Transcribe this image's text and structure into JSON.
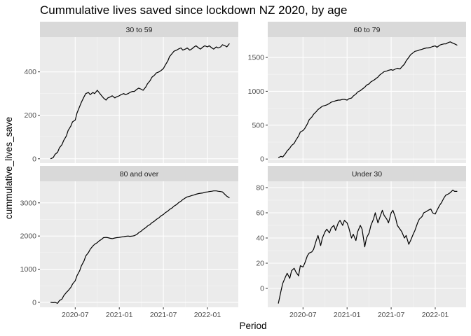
{
  "chart_data": {
    "type": "line",
    "title": "Cummulative lives saved since lockdown NZ 2020, by age",
    "xlabel": "Period",
    "ylabel": "cummulative_lives_save",
    "layout": "facet 2x2, free y scales",
    "grid": true,
    "x_ticks": [
      "2020-07",
      "2021-01",
      "2021-07",
      "2022-01"
    ],
    "x_tick_values": [
      2020.5,
      2021.0,
      2021.5,
      2022.0
    ],
    "xlim": [
      2020.1,
      2022.35
    ],
    "panels": [
      {
        "name": "30 to 59",
        "ylim": [
          -20,
          560
        ],
        "y_ticks": [
          0,
          200,
          400
        ],
        "x": [
          2020.22,
          2020.25,
          2020.27,
          2020.3,
          2020.32,
          2020.35,
          2020.37,
          2020.4,
          2020.42,
          2020.45,
          2020.47,
          2020.5,
          2020.52,
          2020.55,
          2020.57,
          2020.6,
          2020.62,
          2020.65,
          2020.67,
          2020.7,
          2020.72,
          2020.75,
          2020.77,
          2020.8,
          2020.82,
          2020.85,
          2020.87,
          2020.9,
          2020.92,
          2020.95,
          2020.97,
          2021.0,
          2021.02,
          2021.05,
          2021.07,
          2021.1,
          2021.12,
          2021.15,
          2021.17,
          2021.2,
          2021.22,
          2021.25,
          2021.27,
          2021.3,
          2021.32,
          2021.35,
          2021.37,
          2021.4,
          2021.42,
          2021.45,
          2021.47,
          2021.5,
          2021.52,
          2021.55,
          2021.57,
          2021.6,
          2021.62,
          2021.65,
          2021.67,
          2021.7,
          2021.72,
          2021.75,
          2021.77,
          2021.8,
          2021.82,
          2021.85,
          2021.87,
          2021.9,
          2021.92,
          2021.95,
          2021.97,
          2022.0,
          2022.02,
          2022.05,
          2022.07,
          2022.1,
          2022.12,
          2022.15,
          2022.17,
          2022.2,
          2022.22,
          2022.25
        ],
        "y": [
          0,
          5,
          20,
          30,
          50,
          65,
          85,
          105,
          130,
          150,
          170,
          178,
          210,
          240,
          260,
          285,
          300,
          305,
          295,
          305,
          300,
          315,
          305,
          290,
          280,
          270,
          280,
          285,
          290,
          280,
          285,
          290,
          295,
          300,
          295,
          300,
          305,
          310,
          310,
          320,
          325,
          320,
          315,
          330,
          345,
          360,
          375,
          385,
          395,
          400,
          405,
          415,
          430,
          450,
          470,
          485,
          495,
          500,
          505,
          510,
          500,
          505,
          510,
          500,
          505,
          515,
          520,
          510,
          505,
          515,
          520,
          515,
          520,
          510,
          505,
          515,
          510,
          515,
          525,
          520,
          515,
          530
        ]
      },
      {
        "name": "60 to 79",
        "ylim": [
          -60,
          1800
        ],
        "y_ticks": [
          0,
          500,
          1000,
          1500
        ],
        "x": [
          2020.22,
          2020.25,
          2020.27,
          2020.3,
          2020.32,
          2020.35,
          2020.37,
          2020.4,
          2020.42,
          2020.45,
          2020.47,
          2020.5,
          2020.52,
          2020.55,
          2020.57,
          2020.6,
          2020.62,
          2020.65,
          2020.67,
          2020.7,
          2020.72,
          2020.75,
          2020.77,
          2020.8,
          2020.82,
          2020.85,
          2020.87,
          2020.9,
          2020.92,
          2020.95,
          2020.97,
          2021.0,
          2021.02,
          2021.05,
          2021.07,
          2021.1,
          2021.12,
          2021.15,
          2021.17,
          2021.2,
          2021.22,
          2021.25,
          2021.27,
          2021.3,
          2021.32,
          2021.35,
          2021.37,
          2021.4,
          2021.42,
          2021.45,
          2021.47,
          2021.5,
          2021.52,
          2021.55,
          2021.57,
          2021.6,
          2021.62,
          2021.65,
          2021.67,
          2021.7,
          2021.72,
          2021.75,
          2021.77,
          2021.8,
          2021.82,
          2021.85,
          2021.87,
          2021.9,
          2021.92,
          2021.95,
          2021.97,
          2022.0,
          2022.02,
          2022.05,
          2022.07,
          2022.1,
          2022.12,
          2022.15,
          2022.17,
          2022.2,
          2022.22,
          2022.25
        ],
        "y": [
          20,
          40,
          30,
          80,
          120,
          160,
          200,
          230,
          280,
          340,
          400,
          420,
          450,
          520,
          580,
          620,
          660,
          700,
          730,
          760,
          780,
          790,
          800,
          820,
          840,
          850,
          860,
          870,
          870,
          880,
          880,
          870,
          890,
          900,
          930,
          960,
          990,
          1010,
          1030,
          1060,
          1090,
          1110,
          1140,
          1160,
          1180,
          1210,
          1240,
          1270,
          1290,
          1300,
          1310,
          1320,
          1310,
          1330,
          1340,
          1330,
          1360,
          1400,
          1450,
          1500,
          1540,
          1570,
          1590,
          1600,
          1610,
          1620,
          1630,
          1640,
          1640,
          1650,
          1660,
          1670,
          1650,
          1680,
          1690,
          1700,
          1700,
          1720,
          1730,
          1710,
          1700,
          1680
        ]
      },
      {
        "name": "80 and over",
        "ylim": [
          -150,
          3650
        ],
        "y_ticks": [
          0,
          1000,
          2000,
          3000
        ],
        "x": [
          2020.22,
          2020.25,
          2020.27,
          2020.3,
          2020.32,
          2020.35,
          2020.37,
          2020.4,
          2020.42,
          2020.45,
          2020.47,
          2020.5,
          2020.52,
          2020.55,
          2020.57,
          2020.6,
          2020.62,
          2020.65,
          2020.67,
          2020.7,
          2020.72,
          2020.75,
          2020.77,
          2020.8,
          2020.82,
          2020.85,
          2020.87,
          2020.9,
          2020.92,
          2020.95,
          2020.97,
          2021.0,
          2021.02,
          2021.05,
          2021.07,
          2021.1,
          2021.12,
          2021.15,
          2021.17,
          2021.2,
          2021.22,
          2021.25,
          2021.27,
          2021.3,
          2021.32,
          2021.35,
          2021.37,
          2021.4,
          2021.42,
          2021.45,
          2021.47,
          2021.5,
          2021.52,
          2021.55,
          2021.57,
          2021.6,
          2021.62,
          2021.65,
          2021.67,
          2021.7,
          2021.72,
          2021.75,
          2021.77,
          2021.8,
          2021.82,
          2021.85,
          2021.87,
          2021.9,
          2021.92,
          2021.95,
          2021.97,
          2022.0,
          2022.02,
          2022.05,
          2022.07,
          2022.1,
          2022.12,
          2022.15,
          2022.17,
          2022.2,
          2022.22,
          2022.25
        ],
        "y": [
          0,
          -10,
          0,
          -30,
          50,
          100,
          200,
          300,
          350,
          450,
          550,
          650,
          800,
          950,
          1100,
          1250,
          1400,
          1500,
          1600,
          1700,
          1750,
          1800,
          1850,
          1900,
          1950,
          1960,
          1950,
          1930,
          1920,
          1940,
          1950,
          1960,
          1970,
          1980,
          1990,
          2000,
          1990,
          2000,
          2010,
          2050,
          2100,
          2150,
          2200,
          2250,
          2300,
          2350,
          2400,
          2450,
          2500,
          2550,
          2600,
          2650,
          2700,
          2750,
          2800,
          2850,
          2900,
          2950,
          3000,
          3050,
          3100,
          3150,
          3180,
          3200,
          3220,
          3240,
          3260,
          3280,
          3290,
          3300,
          3320,
          3330,
          3340,
          3350,
          3360,
          3360,
          3350,
          3340,
          3330,
          3250,
          3200,
          3150
        ]
      },
      {
        "name": "Under 30",
        "ylim": [
          -15,
          85
        ],
        "y_ticks": [
          0,
          20,
          40,
          60,
          80
        ],
        "x": [
          2020.22,
          2020.25,
          2020.27,
          2020.3,
          2020.32,
          2020.35,
          2020.37,
          2020.4,
          2020.42,
          2020.45,
          2020.47,
          2020.5,
          2020.52,
          2020.55,
          2020.57,
          2020.6,
          2020.62,
          2020.65,
          2020.67,
          2020.7,
          2020.72,
          2020.75,
          2020.77,
          2020.8,
          2020.82,
          2020.85,
          2020.87,
          2020.9,
          2020.92,
          2020.95,
          2020.97,
          2021.0,
          2021.02,
          2021.05,
          2021.07,
          2021.1,
          2021.12,
          2021.15,
          2021.17,
          2021.2,
          2021.22,
          2021.25,
          2021.27,
          2021.3,
          2021.32,
          2021.35,
          2021.37,
          2021.4,
          2021.42,
          2021.45,
          2021.47,
          2021.5,
          2021.52,
          2021.55,
          2021.57,
          2021.6,
          2021.62,
          2021.65,
          2021.67,
          2021.7,
          2021.72,
          2021.75,
          2021.77,
          2021.8,
          2021.82,
          2021.85,
          2021.87,
          2021.9,
          2021.92,
          2021.95,
          2021.97,
          2022.0,
          2022.02,
          2022.05,
          2022.07,
          2022.1,
          2022.12,
          2022.15,
          2022.17,
          2022.2,
          2022.22,
          2022.25
        ],
        "y": [
          -12,
          -2,
          4,
          9,
          12,
          8,
          14,
          16,
          13,
          10,
          18,
          17,
          20,
          26,
          28,
          29,
          31,
          38,
          42,
          34,
          40,
          45,
          47,
          44,
          48,
          50,
          46,
          52,
          54,
          50,
          54,
          52,
          48,
          40,
          43,
          38,
          45,
          50,
          47,
          33,
          40,
          44,
          50,
          55,
          60,
          52,
          56,
          62,
          58,
          55,
          52,
          60,
          62,
          56,
          50,
          47,
          45,
          40,
          42,
          35,
          38,
          43,
          46,
          52,
          55,
          57,
          60,
          61,
          62,
          63,
          60,
          59,
          62,
          66,
          68,
          72,
          74,
          75,
          76,
          78,
          77,
          77
        ]
      }
    ]
  }
}
